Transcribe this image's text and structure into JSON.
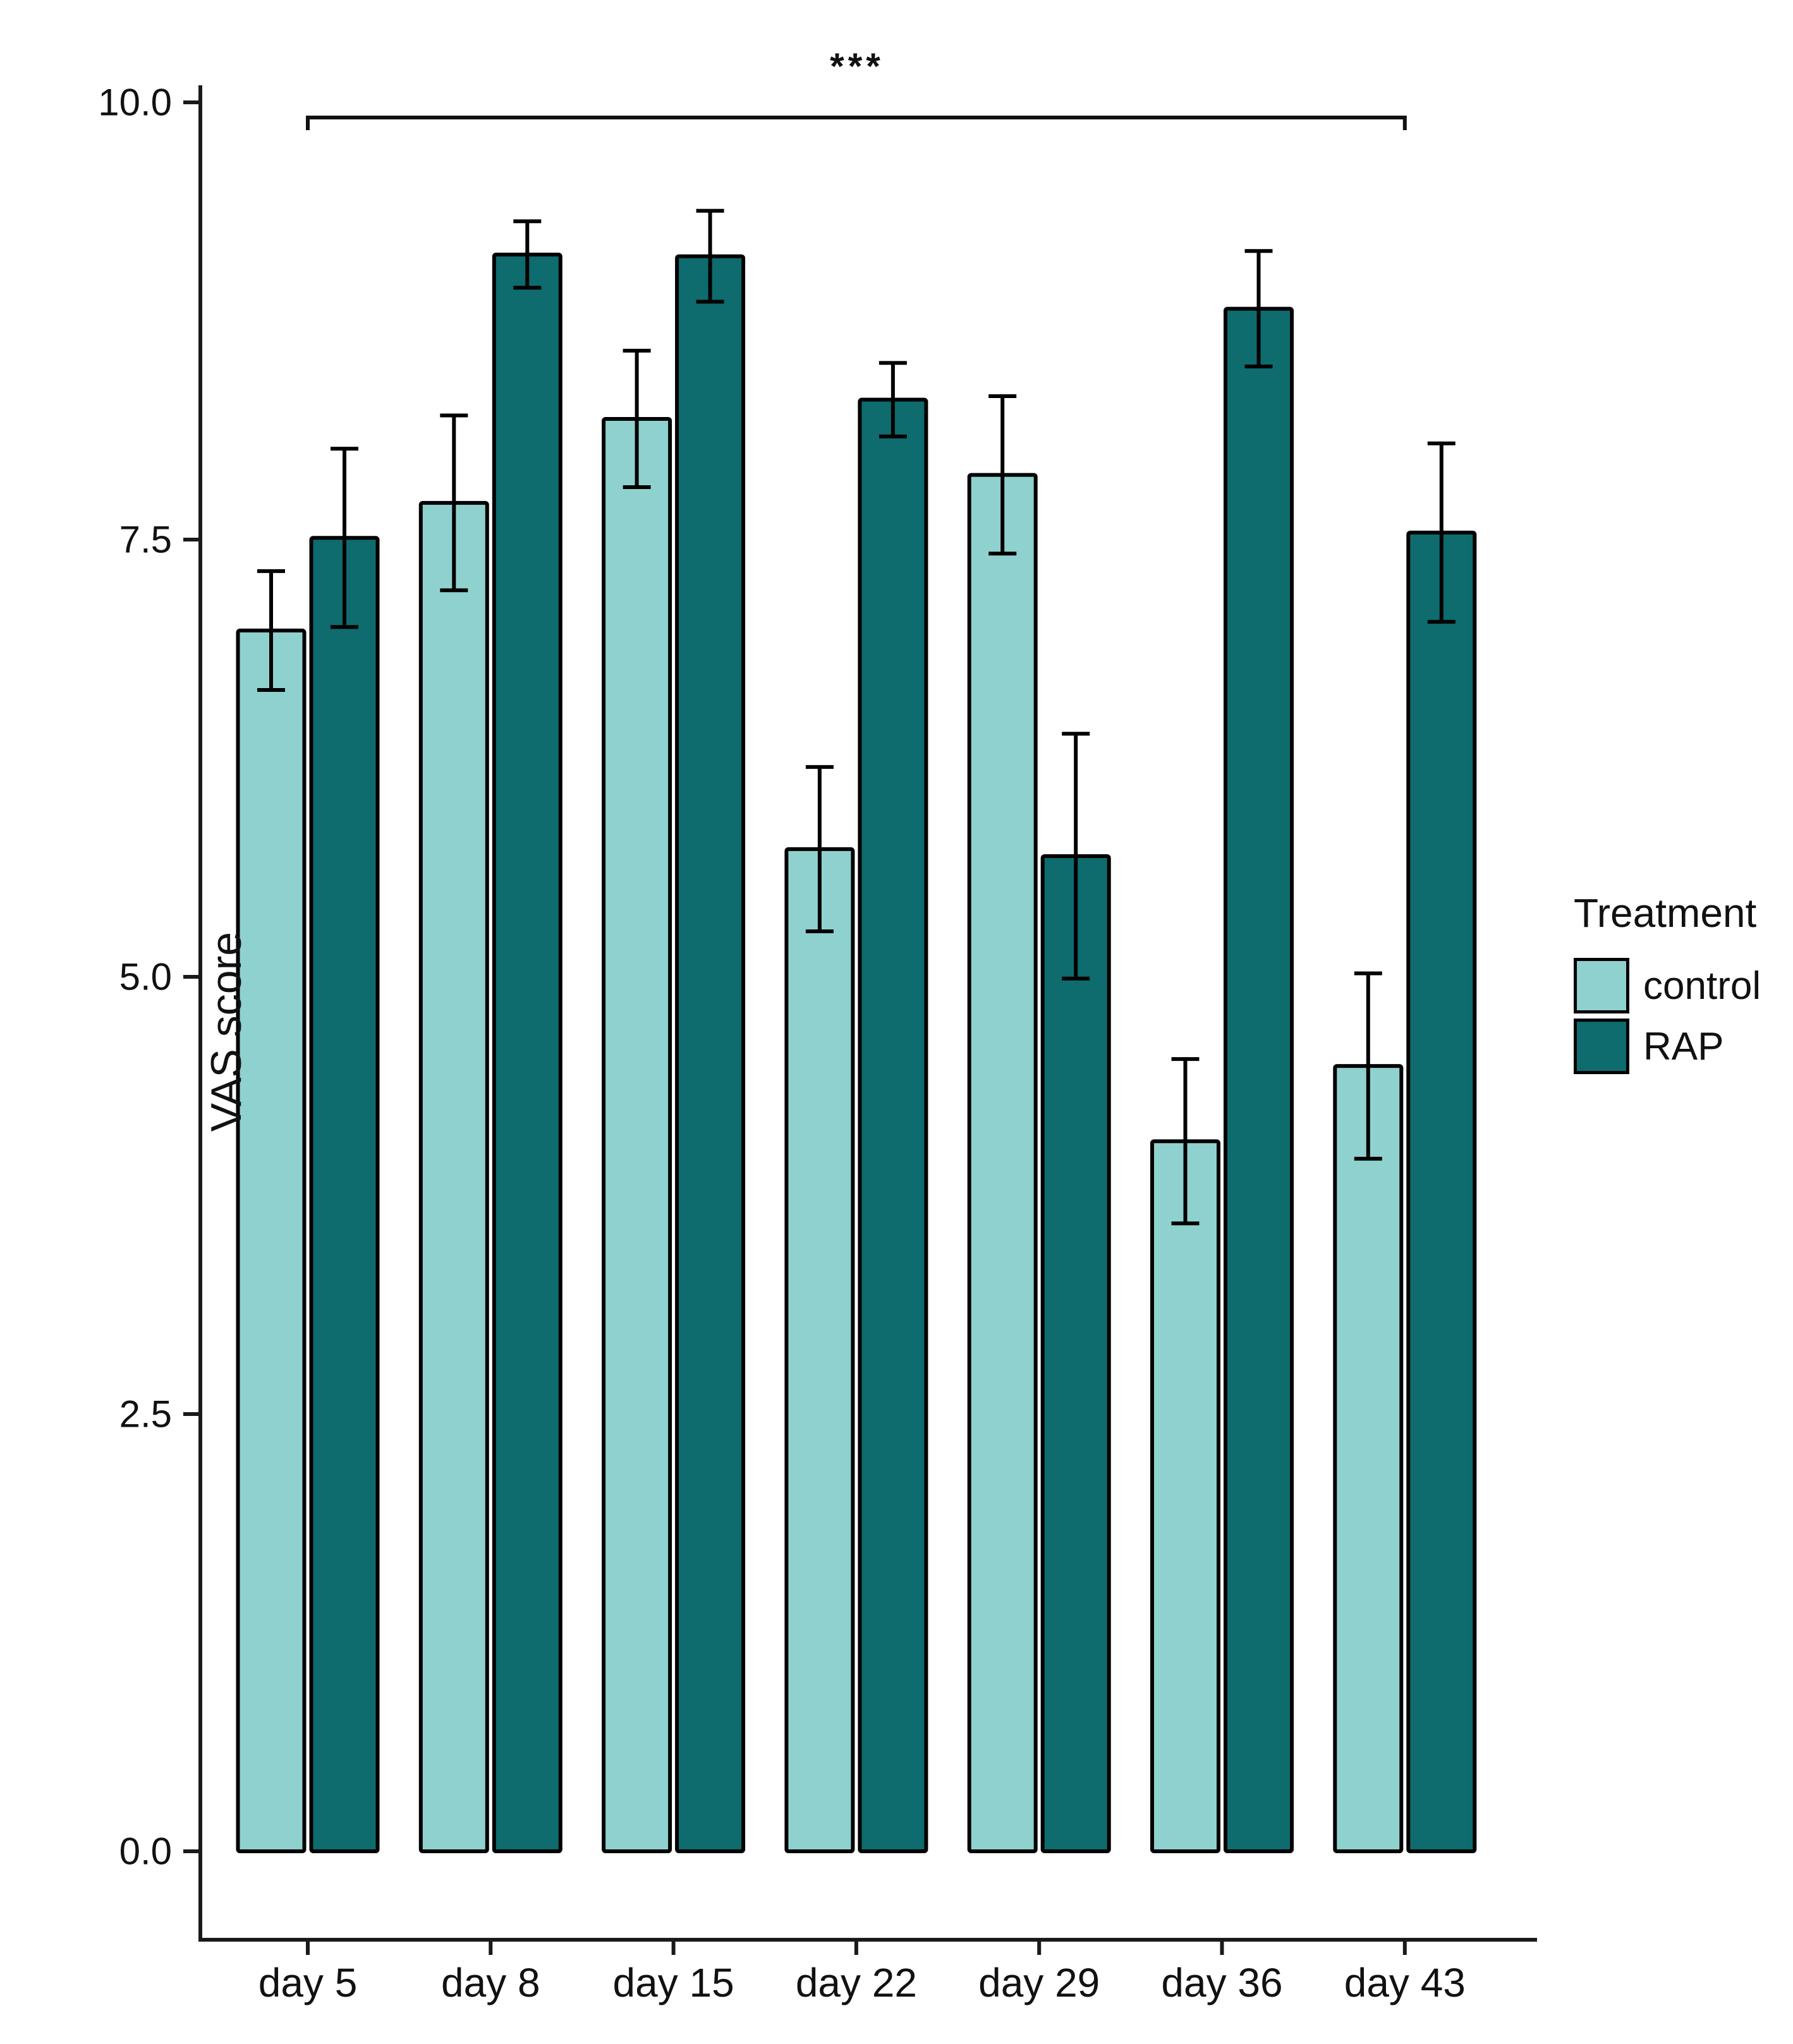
{
  "chart_data": {
    "type": "bar",
    "title": "",
    "xlabel": "",
    "ylabel": "VAS score",
    "categories": [
      "day 5",
      "day 8",
      "day 15",
      "day 22",
      "day 29",
      "day 36",
      "day 43"
    ],
    "series": [
      {
        "name": "control",
        "color": "#8FD1CF",
        "values": [
          6.98,
          7.71,
          8.19,
          5.73,
          7.87,
          4.06,
          4.49
        ],
        "errors": [
          0.34,
          0.5,
          0.39,
          0.47,
          0.45,
          0.47,
          0.53
        ]
      },
      {
        "name": "RAP",
        "color": "#0E6B6E",
        "values": [
          7.51,
          9.13,
          9.12,
          8.3,
          5.69,
          8.82,
          7.54
        ],
        "errors": [
          0.51,
          0.19,
          0.26,
          0.21,
          0.7,
          0.33,
          0.51
        ]
      }
    ],
    "ylim": [
      0,
      10
    ],
    "yticks": [
      0.0,
      2.5,
      5.0,
      7.5,
      10.0
    ],
    "ytick_labels": [
      "0.0",
      "2.5",
      "5.0",
      "7.5",
      "10.0"
    ],
    "grid": "off",
    "legend_position": "right",
    "legend_title": "Treatment",
    "significance": {
      "label": "***",
      "from": "day 5",
      "to": "day 43"
    },
    "error_bars": "on",
    "axis_color": "#1a1a1a"
  }
}
